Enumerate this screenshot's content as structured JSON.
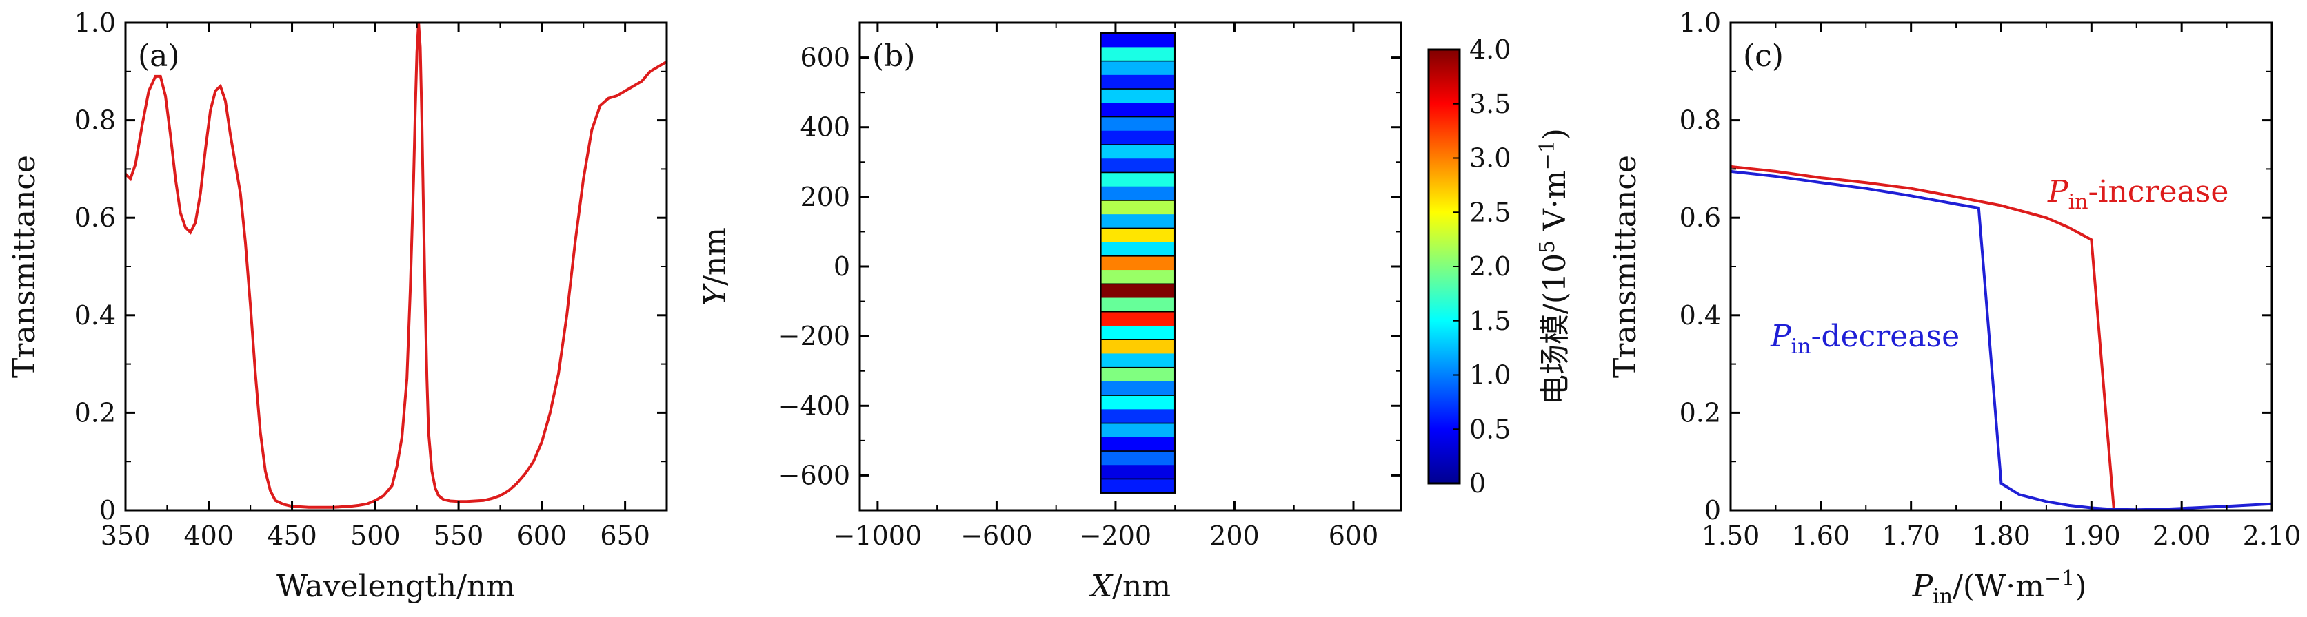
{
  "chart_data": [
    {
      "panel": "(a)",
      "type": "line",
      "xlabel": "Wavelength/nm",
      "ylabel": "Transmittance",
      "xlim": [
        350,
        675
      ],
      "ylim": [
        0,
        1.0
      ],
      "xticks": [
        "350",
        "400",
        "450",
        "500",
        "550",
        "600",
        "650"
      ],
      "yticks": [
        "0",
        "0.2",
        "0.4",
        "0.6",
        "0.8",
        "1.0"
      ],
      "color": "#dd1c1c",
      "x": [
        350,
        353,
        356,
        360,
        364,
        368,
        371,
        374,
        377,
        380,
        383,
        386,
        389,
        392,
        395,
        398,
        401,
        404,
        407,
        410,
        413,
        416,
        419,
        422,
        425,
        428,
        431,
        434,
        437,
        440,
        445,
        450,
        455,
        460,
        465,
        470,
        475,
        480,
        485,
        490,
        495,
        500,
        505,
        510,
        513,
        516,
        519,
        521,
        523,
        524,
        525,
        526,
        527,
        528,
        529,
        530,
        531,
        532,
        534,
        536,
        538,
        541,
        545,
        550,
        555,
        560,
        565,
        570,
        575,
        580,
        585,
        590,
        595,
        600,
        605,
        610,
        615,
        620,
        625,
        630,
        635,
        640,
        645,
        650,
        655,
        660,
        665,
        670,
        675
      ],
      "y": [
        0.69,
        0.68,
        0.71,
        0.79,
        0.86,
        0.89,
        0.89,
        0.85,
        0.77,
        0.68,
        0.61,
        0.58,
        0.57,
        0.59,
        0.65,
        0.74,
        0.82,
        0.86,
        0.87,
        0.84,
        0.77,
        0.71,
        0.65,
        0.55,
        0.42,
        0.28,
        0.16,
        0.08,
        0.04,
        0.02,
        0.012,
        0.008,
        0.007,
        0.006,
        0.006,
        0.006,
        0.006,
        0.007,
        0.008,
        0.01,
        0.013,
        0.02,
        0.03,
        0.05,
        0.09,
        0.15,
        0.27,
        0.45,
        0.68,
        0.82,
        0.94,
        1.0,
        0.95,
        0.8,
        0.6,
        0.42,
        0.27,
        0.16,
        0.08,
        0.045,
        0.03,
        0.022,
        0.019,
        0.018,
        0.018,
        0.019,
        0.02,
        0.024,
        0.03,
        0.04,
        0.055,
        0.075,
        0.1,
        0.14,
        0.2,
        0.28,
        0.4,
        0.55,
        0.68,
        0.78,
        0.83,
        0.845,
        0.85,
        0.86,
        0.87,
        0.88,
        0.9,
        0.91,
        0.92
      ]
    },
    {
      "panel": "(b)",
      "type": "heatmap",
      "xlabel": "X/nm",
      "ylabel": "Y/nm",
      "xlim": [
        -1060,
        760
      ],
      "ylim": [
        -700,
        700
      ],
      "xticks": [
        "−1000",
        "−600",
        "−200",
        "200",
        "600"
      ],
      "yticks": [
        "−600",
        "−400",
        "−200",
        "0",
        "200",
        "400",
        "600"
      ],
      "strip_x": [
        -250,
        0
      ],
      "strip_y": [
        -650,
        670
      ],
      "colorbar_label": "电场模/(10⁵ V·m⁻¹)",
      "colorbar_range": [
        0,
        4.0
      ],
      "colorbar_ticks": [
        "0",
        "0.5",
        "1.0",
        "1.5",
        "2.0",
        "2.5",
        "3.0",
        "3.5",
        "4.0"
      ],
      "field_levels": [
        0.5,
        1.6,
        1.2,
        0.6,
        1.3,
        0.5,
        1.0,
        0.6,
        1.3,
        0.7,
        1.6,
        1.0,
        2.2,
        1.2,
        2.6,
        1.4,
        3.0,
        2.1,
        4.0,
        1.9,
        3.4,
        1.5,
        2.7,
        1.3,
        2.0,
        1.0,
        1.5,
        0.7,
        1.2,
        0.5,
        0.9,
        0.4,
        0.6
      ]
    },
    {
      "panel": "(c)",
      "type": "line",
      "xlabel": "Pin/(W·m−1)",
      "ylabel": "Transmittance",
      "xlim": [
        1.5,
        2.1
      ],
      "ylim": [
        0,
        1.0
      ],
      "xticks": [
        "1.50",
        "1.60",
        "1.70",
        "1.80",
        "1.90",
        "2.00",
        "2.10"
      ],
      "yticks": [
        "0",
        "0.2",
        "0.4",
        "0.6",
        "0.8",
        "1.0"
      ],
      "series": [
        {
          "name": "Pin-increase",
          "color": "#dd1c1c",
          "x": [
            1.5,
            1.55,
            1.6,
            1.65,
            1.7,
            1.75,
            1.8,
            1.85,
            1.875,
            1.9,
            1.925,
            1.93
          ],
          "y": [
            0.705,
            0.695,
            0.682,
            0.672,
            0.66,
            0.643,
            0.625,
            0.6,
            0.58,
            0.555,
            0.0,
            0.0
          ]
        },
        {
          "name": "Pin-decrease",
          "color": "#1f1fd6",
          "x": [
            1.5,
            1.55,
            1.6,
            1.65,
            1.7,
            1.75,
            1.775,
            1.8,
            1.82,
            1.85,
            1.875,
            1.9,
            1.925,
            1.95,
            1.975,
            2.0,
            2.05,
            2.1
          ],
          "y": [
            0.695,
            0.685,
            0.672,
            0.66,
            0.645,
            0.628,
            0.62,
            0.055,
            0.032,
            0.018,
            0.01,
            0.005,
            0.002,
            0.001,
            0.002,
            0.004,
            0.008,
            0.013
          ]
        }
      ]
    }
  ],
  "text": {
    "a_xlabel": "Wavelength/nm",
    "a_ylabel": "Transmittance",
    "a_panel": "(a)",
    "b_xlabel_var": "X",
    "b_xlabel_unit": "/nm",
    "b_ylabel_var": "Y",
    "b_ylabel_unit": "/nm",
    "b_panel": "(b)",
    "cb_label_main": "电场模/(10",
    "cb_label_exp": "5",
    "cb_label_unit": " V·m",
    "cb_label_exp2": "−1",
    "cb_label_close": ")",
    "c_panel": "(c)",
    "c_ylabel": "Transmittance",
    "c_xlabel_var": "P",
    "c_xlabel_sub": "in",
    "c_xlabel_unit": "/(W·m",
    "c_xlabel_exp": "−1",
    "c_xlabel_close": ")",
    "inc_var": "P",
    "inc_sub": "in",
    "inc_rest": "-increase",
    "dec_var": "P",
    "dec_sub": "in",
    "dec_rest": "-decrease"
  }
}
